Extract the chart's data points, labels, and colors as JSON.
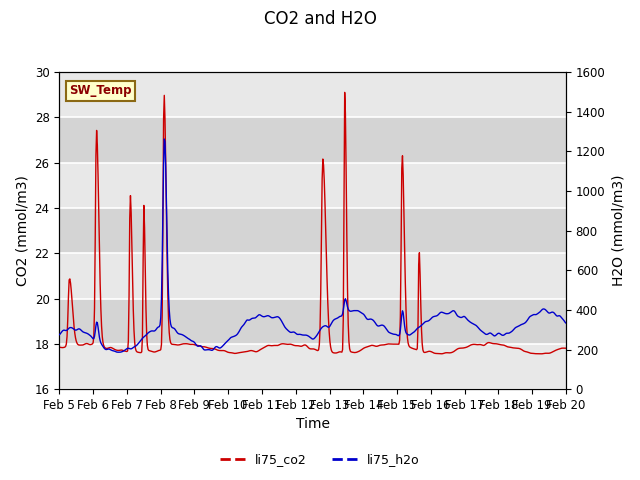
{
  "title": "CO2 and H2O",
  "xlabel": "Time",
  "ylabel_left": "CO2 (mmol/m3)",
  "ylabel_right": "H2O (mmol/m3)",
  "ylim_left": [
    16,
    30
  ],
  "ylim_right": [
    0,
    1600
  ],
  "yticks_left": [
    16,
    18,
    20,
    22,
    24,
    26,
    28,
    30
  ],
  "yticks_right": [
    0,
    200,
    400,
    600,
    800,
    1000,
    1200,
    1400,
    1600
  ],
  "xticklabels": [
    "Feb 5",
    "Feb 6",
    "Feb 7",
    "Feb 8",
    "Feb 9",
    "Feb 10",
    "Feb 11",
    "Feb 12",
    "Feb 13",
    "Feb 14",
    "Feb 15",
    "Feb 16",
    "Feb 17",
    "Feb 18",
    "Feb 19",
    "Feb 20"
  ],
  "color_co2": "#cc0000",
  "color_h2o": "#0000cc",
  "background_color": "#e8e8e8",
  "band_color_light": "#f0f0f0",
  "band_color_dark": "#d8d8d8",
  "annotation_text": "SW_Temp",
  "annotation_color": "#8b0000",
  "annotation_bg": "#ffffcc",
  "annotation_border": "#8b6914",
  "legend_co2": "li75_co2",
  "legend_h2o": "li75_h2o",
  "title_fontsize": 12,
  "label_fontsize": 10,
  "tick_fontsize": 8.5,
  "linewidth": 1.0
}
